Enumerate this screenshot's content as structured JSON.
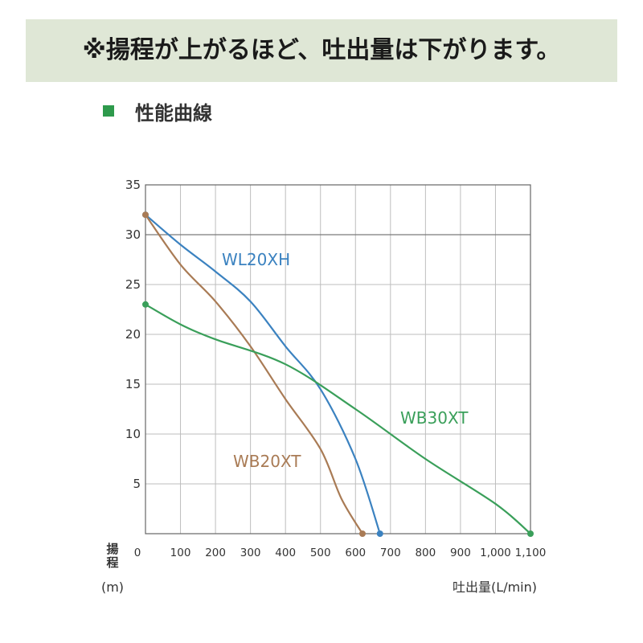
{
  "banner": {
    "text": "※揚程が上がるほど、吐出量は下がります。"
  },
  "section": {
    "title": "性能曲線"
  },
  "colors": {
    "banner_bg": "#dfe7d6",
    "accent_square": "#2e9a4c"
  },
  "chart_data": {
    "type": "line",
    "title": "",
    "xlabel": "吐出量(L/min)",
    "ylabel_chars": [
      "揚",
      "程"
    ],
    "yunit": "(m)",
    "xlim": [
      0,
      1100
    ],
    "ylim": [
      0,
      35
    ],
    "xticks": [
      0,
      100,
      200,
      300,
      400,
      500,
      600,
      700,
      800,
      900,
      1000,
      1100
    ],
    "xtick_labels": [
      "0",
      "100",
      "200",
      "300",
      "400",
      "500",
      "600",
      "700",
      "800",
      "900",
      "1,000",
      "1,100"
    ],
    "yticks": [
      5,
      10,
      15,
      20,
      25,
      30,
      35
    ],
    "ytick_labels": [
      "5",
      "10",
      "15",
      "20",
      "25",
      "30",
      "35"
    ],
    "grid": true,
    "series": [
      {
        "name": "WL20XH",
        "color": "#3b82c0",
        "x": [
          0,
          100,
          200,
          300,
          400,
          500,
          600,
          670
        ],
        "y": [
          32,
          29,
          26.3,
          23.3,
          18.8,
          14.5,
          7.5,
          0
        ]
      },
      {
        "name": "WB20XT",
        "color": "#a97b55",
        "x": [
          0,
          100,
          200,
          300,
          400,
          500,
          560,
          620
        ],
        "y": [
          32,
          27,
          23.3,
          18.8,
          13.5,
          8.5,
          3.5,
          0
        ]
      },
      {
        "name": "WB30XT",
        "color": "#3a9f5a",
        "x": [
          0,
          100,
          200,
          400,
          600,
          800,
          1000,
          1100
        ],
        "y": [
          23,
          21,
          19.5,
          17,
          12.5,
          7.5,
          3,
          0
        ]
      }
    ]
  }
}
